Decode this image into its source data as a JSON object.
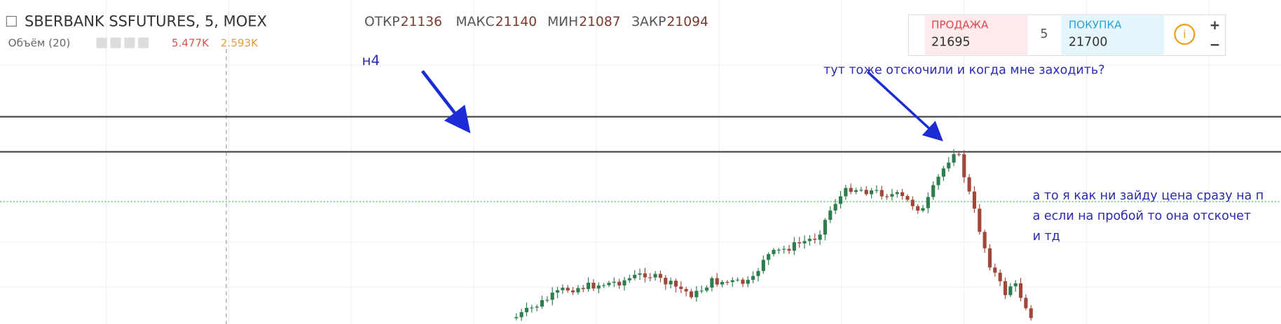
{
  "header": {
    "symbol": "SBERBANK SSFUTURES, 5, MOEX",
    "ohlc": [
      {
        "label": "ОТКР",
        "value": 21136
      },
      {
        "label": "МАКС",
        "value": 21140
      },
      {
        "label": "МИН",
        "value": 21087
      },
      {
        "label": "ЗАКР",
        "value": 21094
      }
    ]
  },
  "volume": {
    "label": "Объём (20)",
    "values": [
      "5.477K",
      "2.593K"
    ]
  },
  "order_panel": {
    "sell_label": "ПРОДАЖА",
    "sell_price": 21695,
    "quantity": 5,
    "buy_label": "ПОКУПКА",
    "buy_price": 21700
  },
  "annotations": {
    "timeframe": "н4",
    "question": "тут тоже отскочили и когда мне заходить?",
    "comment": [
      "а то я как ни зайду цена сразу на п",
      "а если на пробой то она отскочет",
      "и тд"
    ]
  }
}
